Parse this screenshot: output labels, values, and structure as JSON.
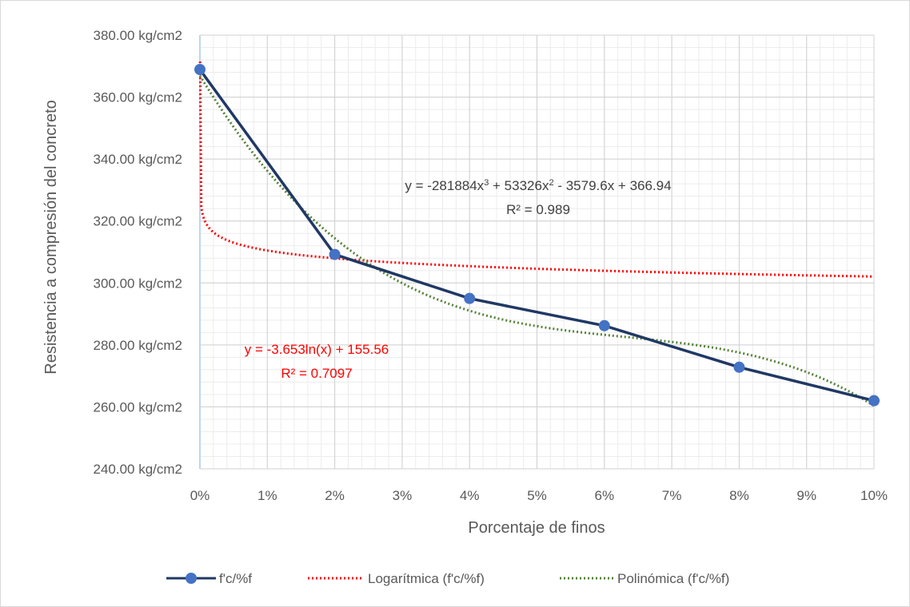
{
  "chart_data": {
    "type": "line",
    "xlabel": "Porcentaje de finos",
    "ylabel": "Resistencia a compresión del concreto",
    "x_ticks": [
      "0%",
      "1%",
      "2%",
      "3%",
      "4%",
      "5%",
      "6%",
      "7%",
      "8%",
      "9%",
      "10%"
    ],
    "y_ticks": [
      "240.00 kg/cm2",
      "260.00 kg/cm2",
      "280.00 kg/cm2",
      "300.00 kg/cm2",
      "320.00 kg/cm2",
      "340.00 kg/cm2",
      "360.00 kg/cm2",
      "380.00 kg/cm2"
    ],
    "xlim": [
      0,
      0.1
    ],
    "ylim": [
      240,
      380
    ],
    "grid": true,
    "legend_position": "bottom",
    "series": [
      {
        "name": "f'c/%f",
        "color": "#203864",
        "x": [
          0,
          0.02,
          0.04,
          0.06,
          0.08,
          0.1
        ],
        "y": [
          368.9,
          309.2,
          295.0,
          286.2,
          272.8,
          262.0
        ]
      }
    ],
    "trendlines": [
      {
        "name": "Logarítmica (f'c/%f)",
        "kind": "logarithmic",
        "color": "#ff0000",
        "a": -3.653,
        "b": 155.56,
        "equation": "y = -3.653ln(x) + 155.56",
        "r2": "R² = 0.7097"
      },
      {
        "name": "Polinómica (f'c/%f)",
        "kind": "polynomial",
        "color": "#548235",
        "coefficients": [
          -281884,
          53326,
          -3579.6,
          366.94
        ],
        "equation": "y = -281884x³ + 53326x² - 3579.6x + 366.94",
        "r2": "R² = 0.989"
      }
    ]
  }
}
